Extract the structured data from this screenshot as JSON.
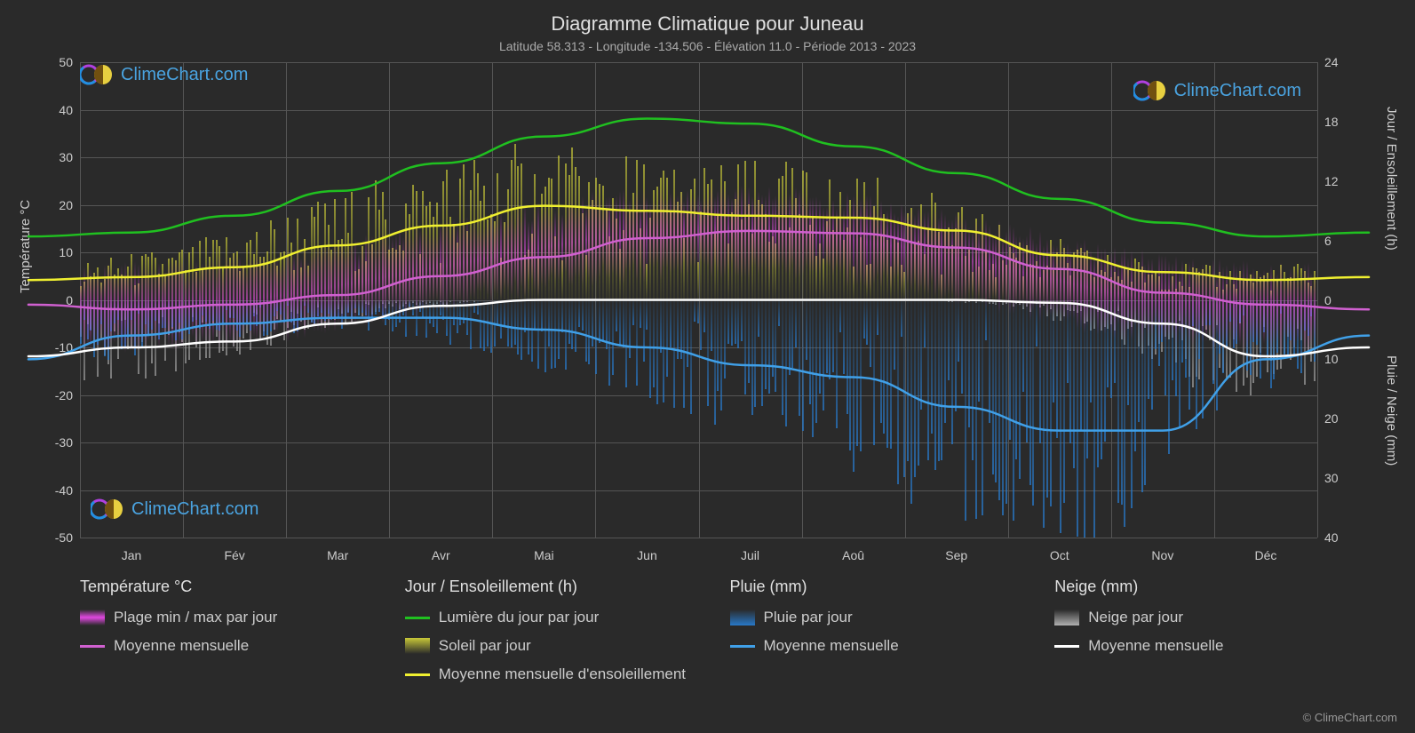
{
  "title": "Diagramme Climatique pour Juneau",
  "subtitle": "Latitude 58.313 - Longitude -134.506 - Élévation 11.0 - Période 2013 - 2023",
  "logo_text": "ClimeChart.com",
  "copyright": "© ClimeChart.com",
  "axes": {
    "left_label": "Température °C",
    "right_top_label": "Jour / Ensoleillement (h)",
    "right_bot_label": "Pluie / Neige (mm)",
    "left_ticks": [
      -50,
      -40,
      -30,
      -20,
      -10,
      0,
      10,
      20,
      30,
      40,
      50
    ],
    "right_top_ticks": [
      0,
      6,
      12,
      18,
      24
    ],
    "right_bot_ticks": [
      0,
      10,
      20,
      30,
      40
    ],
    "months": [
      "Jan",
      "Fév",
      "Mar",
      "Avr",
      "Mai",
      "Jun",
      "Juil",
      "Aoû",
      "Sep",
      "Oct",
      "Nov",
      "Déc"
    ],
    "left_min": -50,
    "left_max": 50,
    "right_top_min": 0,
    "right_top_max": 24,
    "right_bot_min": 0,
    "right_bot_max": 40
  },
  "colors": {
    "bg": "#2a2a2a",
    "grid": "#555555",
    "text": "#d0d0d0",
    "temp_range": "#e048e0",
    "temp_avg": "#d060d0",
    "daylight": "#20c020",
    "sun_bars": "#c8c838",
    "sun_avg": "#f0f030",
    "rain_bars": "#2878c8",
    "rain_avg": "#40a0e8",
    "snow_bars": "#b0b0b0",
    "snow_avg": "#ffffff",
    "logo": "#4aa3e0"
  },
  "lines": {
    "daylight_h": [
      6.8,
      8.5,
      11.0,
      13.8,
      16.5,
      18.3,
      17.8,
      15.5,
      12.8,
      10.2,
      7.8,
      6.4
    ],
    "sun_avg_h": [
      2.3,
      3.3,
      5.5,
      7.5,
      9.5,
      9.0,
      8.5,
      8.3,
      7.0,
      4.5,
      2.8,
      2.0
    ],
    "temp_avg_c": [
      -2.0,
      -1.0,
      1.0,
      5.0,
      9.0,
      13.0,
      14.5,
      14.0,
      11.0,
      6.5,
      1.5,
      -1.0
    ],
    "rain_avg_mm": [
      6.0,
      4.0,
      3.0,
      3.0,
      5.0,
      8.0,
      11.0,
      13.0,
      18.0,
      22.0,
      22.0,
      10.0
    ],
    "snow_avg_mm": [
      8.0,
      7.0,
      4.0,
      1.0,
      0.0,
      0.0,
      0.0,
      0.0,
      0.0,
      0.5,
      4.0,
      9.5
    ]
  },
  "legend": {
    "temp_hdr": "Température °C",
    "temp_range": "Plage min / max par jour",
    "temp_avg": "Moyenne mensuelle",
    "day_hdr": "Jour / Ensoleillement (h)",
    "daylight": "Lumière du jour par jour",
    "sun_bars": "Soleil par jour",
    "sun_avg": "Moyenne mensuelle d'ensoleillement",
    "rain_hdr": "Pluie (mm)",
    "rain_bars": "Pluie par jour",
    "rain_avg": "Moyenne mensuelle",
    "snow_hdr": "Neige (mm)",
    "snow_bars": "Neige par jour",
    "snow_avg": "Moyenne mensuelle"
  }
}
